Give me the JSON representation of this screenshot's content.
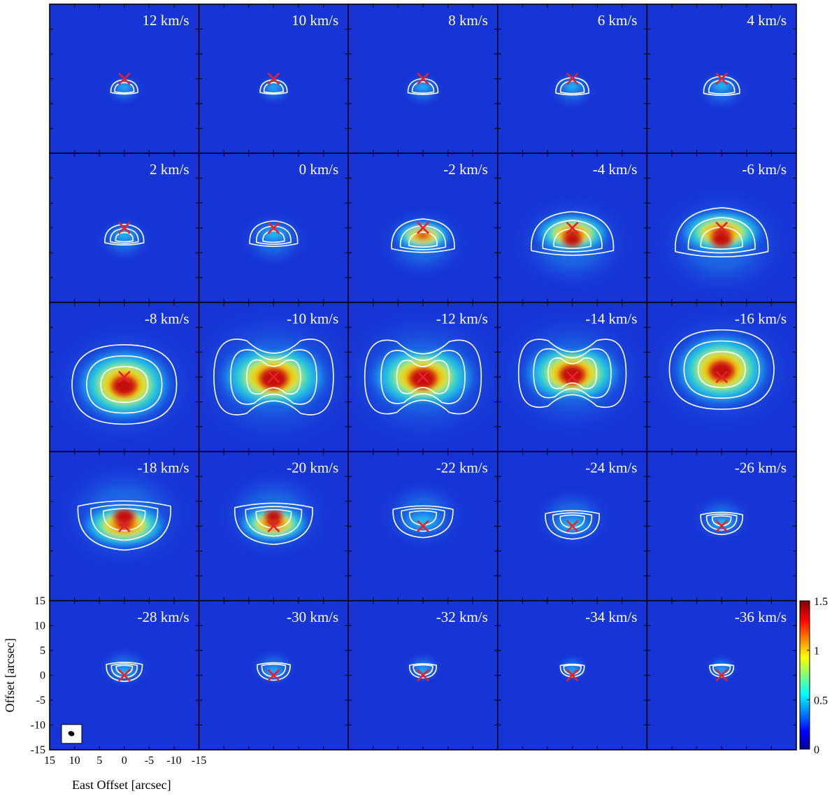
{
  "chart_data": {
    "type": "heatmap",
    "layout": "channel-map grid, 5 rows x 5 columns",
    "panels": [
      {
        "label": "12 km/s",
        "velocity": 12,
        "intensity": 0.25,
        "extent": 0.18,
        "shape": "cap",
        "shift": -0.15
      },
      {
        "label": "10 km/s",
        "velocity": 10,
        "intensity": 0.28,
        "extent": 0.18,
        "shape": "cap",
        "shift": -0.15
      },
      {
        "label": "8 km/s",
        "velocity": 8,
        "intensity": 0.3,
        "extent": 0.2,
        "shape": "cap",
        "shift": -0.15
      },
      {
        "label": "6 km/s",
        "velocity": 6,
        "intensity": 0.32,
        "extent": 0.22,
        "shape": "cap",
        "shift": -0.15
      },
      {
        "label": "4 km/s",
        "velocity": 4,
        "intensity": 0.35,
        "extent": 0.24,
        "shape": "cap",
        "shift": -0.15
      },
      {
        "label": "2 km/s",
        "velocity": 2,
        "intensity": 0.45,
        "extent": 0.26,
        "shape": "cap",
        "shift": -0.15
      },
      {
        "label": "0 km/s",
        "velocity": 0,
        "intensity": 0.55,
        "extent": 0.32,
        "shape": "cap",
        "shift": -0.15
      },
      {
        "label": "-2 km/s",
        "velocity": -2,
        "intensity": 0.8,
        "extent": 0.42,
        "shape": "cap",
        "shift": -0.2
      },
      {
        "label": "-4 km/s",
        "velocity": -4,
        "intensity": 1.3,
        "extent": 0.55,
        "shape": "cap",
        "shift": -0.2
      },
      {
        "label": "-6 km/s",
        "velocity": -6,
        "intensity": 1.5,
        "extent": 0.62,
        "shape": "cap",
        "shift": -0.2
      },
      {
        "label": "-8 km/s",
        "velocity": -8,
        "intensity": 1.5,
        "extent": 0.7,
        "shape": "blob",
        "shift": -0.1
      },
      {
        "label": "-10 km/s",
        "velocity": -10,
        "intensity": 1.2,
        "extent": 0.8,
        "shape": "bipolar",
        "shift": 0
      },
      {
        "label": "-12 km/s",
        "velocity": -12,
        "intensity": 1.1,
        "extent": 0.78,
        "shape": "bipolar",
        "shift": 0
      },
      {
        "label": "-14 km/s",
        "velocity": -14,
        "intensity": 1.1,
        "extent": 0.72,
        "shape": "bipolar",
        "shift": 0.05
      },
      {
        "label": "-16 km/s",
        "velocity": -16,
        "intensity": 1.3,
        "extent": 0.7,
        "shape": "blob",
        "shift": 0.1
      },
      {
        "label": "-18 km/s",
        "velocity": -18,
        "intensity": 1.5,
        "extent": 0.62,
        "shape": "bowl",
        "shift": 0.15
      },
      {
        "label": "-20 km/s",
        "velocity": -20,
        "intensity": 1.4,
        "extent": 0.52,
        "shape": "bowl",
        "shift": 0.15
      },
      {
        "label": "-22 km/s",
        "velocity": -22,
        "intensity": 0.7,
        "extent": 0.4,
        "shape": "bowl",
        "shift": 0.15
      },
      {
        "label": "-24 km/s",
        "velocity": -24,
        "intensity": 0.55,
        "extent": 0.36,
        "shape": "bowl",
        "shift": 0.1
      },
      {
        "label": "-26 km/s",
        "velocity": -26,
        "intensity": 0.5,
        "extent": 0.28,
        "shape": "bowl",
        "shift": 0.1
      },
      {
        "label": "-28 km/s",
        "velocity": -28,
        "intensity": 0.45,
        "extent": 0.24,
        "shape": "bowl",
        "shift": 0.1
      },
      {
        "label": "-30 km/s",
        "velocity": -30,
        "intensity": 0.4,
        "extent": 0.22,
        "shape": "bowl",
        "shift": 0.1
      },
      {
        "label": "-32 km/s",
        "velocity": -32,
        "intensity": 0.35,
        "extent": 0.18,
        "shape": "bowl",
        "shift": 0.1
      },
      {
        "label": "-34 km/s",
        "velocity": -34,
        "intensity": 0.3,
        "extent": 0.16,
        "shape": "bowl",
        "shift": 0.1
      },
      {
        "label": "-36 km/s",
        "velocity": -36,
        "intensity": 0.3,
        "extent": 0.16,
        "shape": "bowl",
        "shift": 0.1
      }
    ],
    "x_axis": {
      "label": "East Offset [arcsec]",
      "range": [
        15,
        -15
      ],
      "ticks": [
        15,
        10,
        5,
        0,
        -5,
        -10,
        -15
      ],
      "tick_labels": [
        "15",
        "10",
        "5",
        "0",
        "-5",
        "-10",
        "-15"
      ]
    },
    "y_axis": {
      "label": "Offset [arcsec]",
      "range": [
        -15,
        15
      ],
      "ticks": [
        15,
        10,
        5,
        0,
        -5,
        -10,
        -15
      ],
      "tick_labels": [
        "15",
        "10",
        "5",
        "0",
        "-5",
        "-10",
        "-15"
      ]
    },
    "colorbar": {
      "range": [
        0,
        1.5
      ],
      "ticks": [
        1.5,
        1,
        0.5,
        0
      ],
      "tick_labels": [
        "1.5",
        "1",
        "0.5",
        "0"
      ],
      "colormap": "jet"
    },
    "source_marker": {
      "symbol": "×",
      "position": [
        0,
        0
      ],
      "color": "#e8202a"
    },
    "contour_color": "#ffffff",
    "background_color": "#1735d6"
  }
}
